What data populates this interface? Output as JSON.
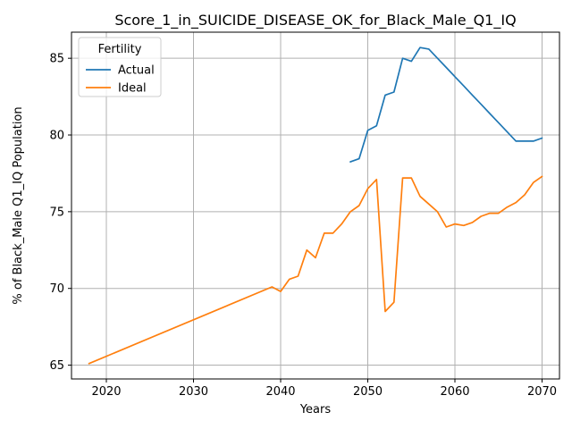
{
  "chart_data": {
    "type": "line",
    "title": "Score_1_in_SUICIDE_DISEASE_OK_for_Black_Male_Q1_IQ",
    "xlabel": "Years",
    "ylabel": "% of Black_Male Q1_IQ Population",
    "xlim": [
      2016,
      2072
    ],
    "ylim": [
      64.1,
      86.7
    ],
    "xticks": [
      2020,
      2030,
      2040,
      2050,
      2060,
      2070
    ],
    "yticks": [
      65,
      70,
      75,
      80,
      85
    ],
    "grid": true,
    "legend": {
      "title": "Fertility",
      "position": "top-left"
    },
    "series": [
      {
        "name": "Actual",
        "color": "#1f77b4",
        "x": [
          2048,
          2049,
          2050,
          2051,
          2052,
          2053,
          2054,
          2055,
          2056,
          2057,
          2058,
          2059,
          2060,
          2061,
          2062,
          2063,
          2064,
          2065,
          2066,
          2067,
          2068,
          2069,
          2070
        ],
        "y": [
          78.25,
          78.45,
          80.3,
          80.6,
          82.6,
          82.8,
          85.0,
          84.8,
          85.7,
          85.6,
          85.0,
          84.4,
          83.8,
          83.2,
          82.6,
          82.0,
          81.4,
          80.8,
          80.2,
          79.6,
          79.6,
          79.6,
          79.8
        ]
      },
      {
        "name": "Ideal",
        "color": "#ff7f0e",
        "x": [
          2018,
          2039,
          2040,
          2041,
          2042,
          2043,
          2044,
          2045,
          2046,
          2047,
          2048,
          2049,
          2050,
          2051,
          2052,
          2053,
          2054,
          2055,
          2056,
          2057,
          2058,
          2059,
          2060,
          2061,
          2062,
          2063,
          2064,
          2065,
          2066,
          2067,
          2068,
          2069,
          2070
        ],
        "y": [
          65.1,
          70.1,
          69.8,
          70.6,
          70.8,
          72.5,
          72.0,
          73.6,
          73.6,
          74.2,
          75.0,
          75.4,
          76.5,
          77.1,
          68.5,
          69.1,
          77.2,
          77.2,
          76.0,
          75.5,
          75.0,
          74.0,
          74.2,
          74.1,
          74.3,
          74.7,
          74.9,
          74.9,
          75.3,
          75.6,
          76.1,
          76.9,
          77.3
        ]
      }
    ]
  }
}
